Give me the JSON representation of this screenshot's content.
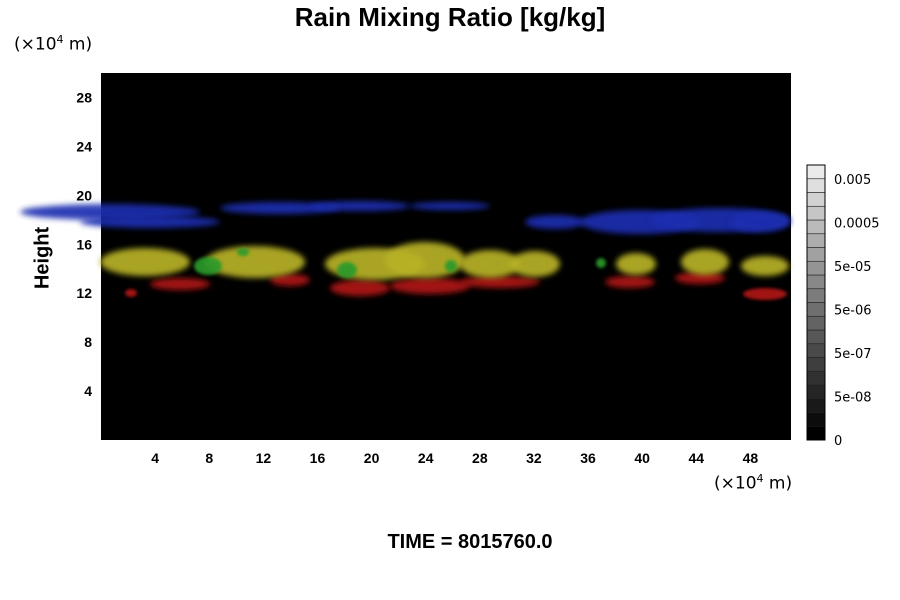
{
  "chart_data": {
    "type": "heatmap",
    "title": "Rain Mixing Ratio [kg/kg]",
    "ylabel": "Height",
    "xlabel": "",
    "x_unit": "(×10⁴ m)",
    "y_unit": "(×10⁴ m)",
    "xlim": [
      0,
      51
    ],
    "ylim": [
      0,
      30
    ],
    "x_ticks": [
      4,
      8,
      12,
      16,
      20,
      24,
      28,
      32,
      36,
      40,
      44,
      48
    ],
    "y_ticks": [
      4,
      8,
      12,
      16,
      20,
      24,
      28
    ],
    "x_tick_labels": [
      "4",
      "8",
      "12",
      "16",
      "20",
      "24",
      "28",
      "32",
      "36",
      "40",
      "44",
      "48"
    ],
    "y_tick_labels": [
      "4",
      "8",
      "12",
      "16",
      "20",
      "24",
      "28"
    ],
    "colorbar": {
      "labels": [
        "0.005",
        "0.0005",
        "5e-05",
        "5e-06",
        "5e-07",
        "5e-08",
        "0"
      ],
      "levels": 20
    },
    "background_color": "#000000",
    "layer_colors": {
      "top": "#1f2fb0",
      "middle": "#b8b228",
      "accent": "#2a9a2a",
      "bottom": "#b01818"
    }
  },
  "footer": {
    "time_label": "TIME = 8015760.0"
  }
}
